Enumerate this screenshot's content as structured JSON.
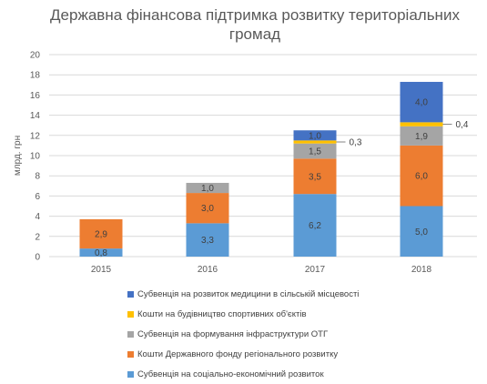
{
  "chart_data": {
    "type": "bar",
    "stacked": true,
    "title": "Державна фінансова підтримка розвитку територіальних громад",
    "title_lines": [
      "Державна фінансова підтримка розвитку територіальних",
      "громад"
    ],
    "ylabel": "млрд. грн",
    "xlabel": "",
    "ylim": [
      0,
      20
    ],
    "yticks": [
      "0",
      "2",
      "4",
      "6",
      "8",
      "10",
      "12",
      "14",
      "16",
      "18",
      "20"
    ],
    "grid": true,
    "legend_position": "bottom",
    "categories": [
      "2015",
      "2016",
      "2017",
      "2018"
    ],
    "series": [
      {
        "name": "Субвенція на соціально-економічний розвиток",
        "color": "#5b9bd5",
        "values": [
          0.8,
          3.3,
          6.2,
          5.0
        ],
        "labels": [
          "0,8",
          "3,3",
          "6,2",
          "5,0"
        ]
      },
      {
        "name": "Кошти Державного фонду регіонального розвитку",
        "color": "#ed7d31",
        "values": [
          2.9,
          3.0,
          3.5,
          6.0
        ],
        "labels": [
          "2,9",
          "3,0",
          "3,5",
          "6,0"
        ]
      },
      {
        "name": "Субвенція на формування інфраструктури ОТГ",
        "color": "#a5a5a5",
        "values": [
          0,
          1.0,
          1.5,
          1.9
        ],
        "labels": [
          "",
          "1,0",
          "1,5",
          "1,9"
        ]
      },
      {
        "name": "Кошти на будівництво спортивних об'єктів",
        "color": "#ffc000",
        "values": [
          0,
          0,
          0.3,
          0.4
        ],
        "labels": [
          "",
          "",
          "0,3",
          "0,4"
        ],
        "callout": true
      },
      {
        "name": "Субвенція на розвиток медицини в сільській місцевості",
        "color": "#4472c4",
        "values": [
          0,
          0,
          1.0,
          4.0
        ],
        "labels": [
          "",
          "",
          "1,0",
          "4,0"
        ]
      }
    ]
  }
}
